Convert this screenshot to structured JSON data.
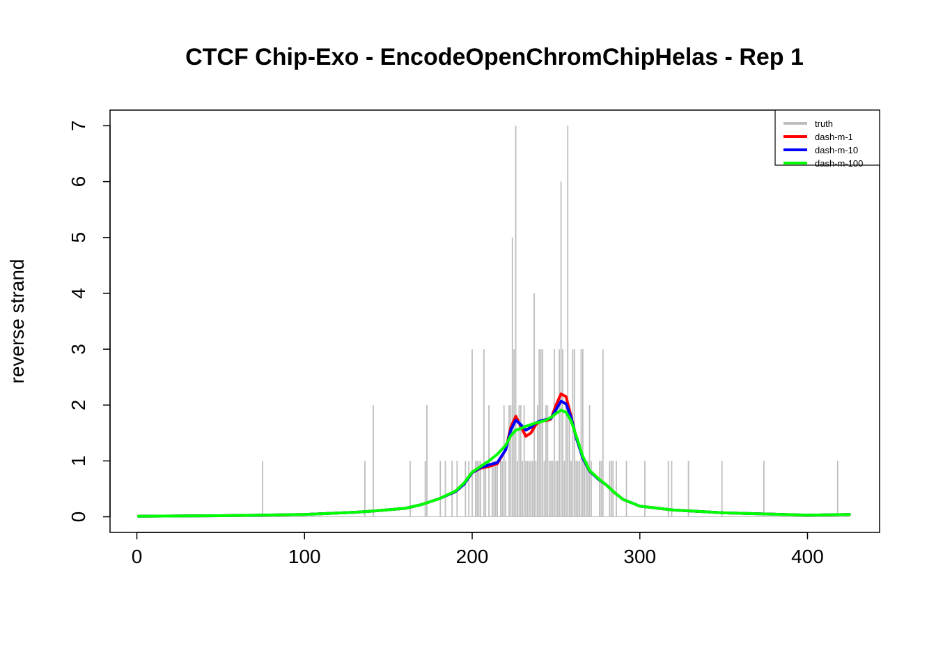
{
  "chart_data": {
    "type": "line",
    "title": "CTCF Chip-Exo - EncodeOpenChromChipHelas - Rep 1",
    "xlabel": "",
    "ylabel": "reverse strand",
    "xlim": [
      -16,
      443
    ],
    "ylim": [
      -0.28,
      7.28
    ],
    "x_ticks": [
      0,
      100,
      200,
      300,
      400
    ],
    "y_ticks": [
      0,
      1,
      2,
      3,
      4,
      5,
      6,
      7
    ],
    "grid": false,
    "legend_position": "top-right",
    "truth": {
      "name": "truth",
      "color": "#bebebe",
      "type": "histogram-spikes",
      "x": [
        75,
        136,
        141,
        163,
        172,
        173,
        181,
        184,
        188,
        191,
        196,
        198,
        200,
        202,
        203,
        204,
        205,
        207,
        208,
        210,
        212,
        213,
        214,
        215,
        217,
        218,
        219,
        220,
        222,
        223,
        224,
        225,
        226,
        227,
        228,
        229,
        230,
        231,
        232,
        233,
        234,
        235,
        236,
        237,
        238,
        239,
        240,
        241,
        242,
        243,
        244,
        245,
        246,
        247,
        248,
        249,
        250,
        251,
        252,
        253,
        254,
        255,
        256,
        257,
        258,
        259,
        260,
        261,
        262,
        263,
        264,
        265,
        266,
        267,
        268,
        269,
        270,
        271,
        276,
        277,
        278,
        282,
        283,
        284,
        286,
        292,
        303,
        317,
        319,
        329,
        349,
        374,
        418
      ],
      "values": [
        1,
        1,
        2,
        1,
        1,
        2,
        1,
        1,
        1,
        1,
        1,
        1,
        3,
        1,
        1,
        1,
        1,
        3,
        1,
        2,
        1,
        1,
        1,
        1,
        1,
        1,
        2,
        1,
        2,
        2,
        5,
        3,
        7,
        1,
        2,
        2,
        1,
        2,
        1,
        1,
        1,
        1,
        1,
        4,
        1,
        2,
        3,
        3,
        3,
        1,
        2,
        2,
        1,
        1,
        1,
        3,
        1,
        1,
        3,
        6,
        3,
        1,
        2,
        7,
        2,
        1,
        3,
        3,
        1,
        1,
        1,
        3,
        3,
        1,
        1,
        1,
        2,
        1,
        1,
        1,
        3,
        1,
        1,
        1,
        1,
        1,
        1,
        1,
        1,
        1,
        1,
        1,
        1
      ]
    },
    "series": [
      {
        "name": "dash-m-1",
        "color": "#ff0000",
        "x": [
          1,
          50,
          100,
          130,
          140,
          160,
          170,
          180,
          190,
          195,
          200,
          205,
          210,
          215,
          220,
          223,
          226,
          229,
          232,
          235,
          238,
          241,
          244,
          247,
          250,
          253,
          256,
          259,
          262,
          266,
          270,
          275,
          280,
          285,
          290,
          300,
          320,
          350,
          400,
          425
        ],
        "values": [
          0.01,
          0.02,
          0.04,
          0.08,
          0.1,
          0.15,
          0.22,
          0.32,
          0.45,
          0.58,
          0.79,
          0.87,
          0.9,
          0.95,
          1.2,
          1.6,
          1.8,
          1.62,
          1.44,
          1.5,
          1.65,
          1.72,
          1.72,
          1.75,
          2.0,
          2.2,
          2.15,
          1.8,
          1.42,
          1.05,
          0.82,
          0.68,
          0.57,
          0.43,
          0.31,
          0.19,
          0.12,
          0.07,
          0.03,
          0.04
        ]
      },
      {
        "name": "dash-m-10",
        "color": "#0000ff",
        "x": [
          1,
          50,
          100,
          130,
          140,
          160,
          170,
          180,
          190,
          195,
          200,
          205,
          210,
          215,
          220,
          223,
          226,
          229,
          232,
          235,
          238,
          241,
          244,
          247,
          250,
          253,
          256,
          259,
          262,
          266,
          270,
          275,
          280,
          285,
          290,
          300,
          320,
          350,
          400,
          425
        ],
        "values": [
          0.01,
          0.02,
          0.04,
          0.08,
          0.1,
          0.15,
          0.22,
          0.32,
          0.45,
          0.58,
          0.79,
          0.88,
          0.93,
          0.97,
          1.2,
          1.55,
          1.73,
          1.65,
          1.55,
          1.6,
          1.68,
          1.72,
          1.74,
          1.76,
          1.92,
          2.07,
          2.02,
          1.78,
          1.42,
          1.05,
          0.82,
          0.68,
          0.57,
          0.43,
          0.31,
          0.19,
          0.12,
          0.07,
          0.03,
          0.04
        ]
      },
      {
        "name": "dash-m-100",
        "color": "#00ff00",
        "x": [
          1,
          50,
          100,
          130,
          140,
          160,
          170,
          180,
          190,
          195,
          200,
          205,
          210,
          215,
          220,
          223,
          226,
          229,
          232,
          235,
          238,
          241,
          244,
          247,
          250,
          253,
          256,
          259,
          262,
          266,
          270,
          275,
          280,
          285,
          290,
          300,
          320,
          350,
          400,
          425
        ],
        "values": [
          0.01,
          0.02,
          0.04,
          0.08,
          0.1,
          0.15,
          0.22,
          0.32,
          0.46,
          0.6,
          0.8,
          0.9,
          1.0,
          1.12,
          1.28,
          1.45,
          1.55,
          1.58,
          1.62,
          1.65,
          1.68,
          1.7,
          1.73,
          1.78,
          1.85,
          1.91,
          1.87,
          1.72,
          1.45,
          1.08,
          0.83,
          0.69,
          0.57,
          0.43,
          0.31,
          0.19,
          0.12,
          0.07,
          0.03,
          0.04
        ]
      }
    ]
  }
}
